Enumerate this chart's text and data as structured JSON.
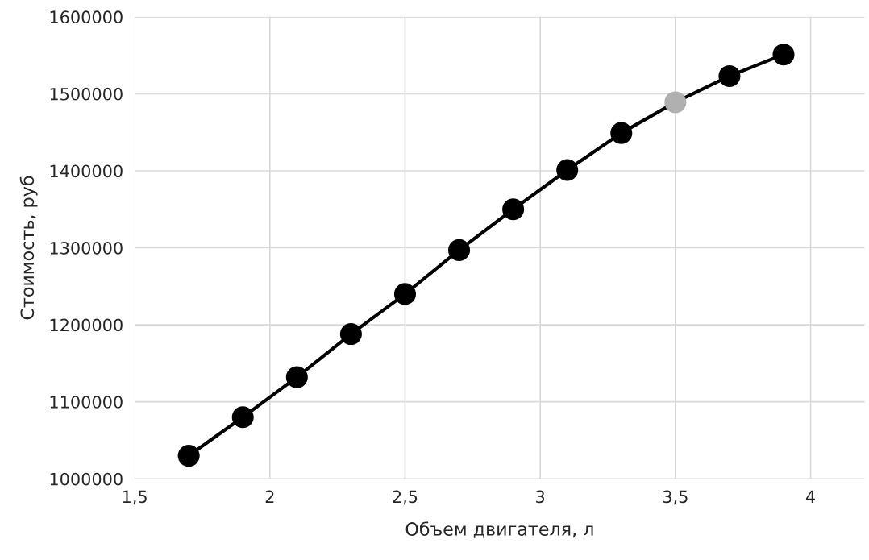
{
  "chart_data": {
    "type": "line",
    "xlabel": "Объем двигателя, л",
    "ylabel": "Стоимость, руб",
    "x": [
      1.7,
      1.9,
      2.1,
      2.3,
      2.5,
      2.7,
      2.9,
      3.1,
      3.3,
      3.5,
      3.7,
      3.9
    ],
    "series": [
      {
        "color": "#000000",
        "colors": [
          "#000000",
          "#000000",
          "#000000",
          "#000000",
          "#000000",
          "#000000",
          "#000000",
          "#000000",
          "#000000",
          "#b0b0b0",
          "#000000",
          "#000000"
        ],
        "values": [
          1030000,
          1080000,
          1132000,
          1188000,
          1240000,
          1297000,
          1350000,
          1401000,
          1449000,
          1489000,
          1523000,
          1551000
        ]
      }
    ],
    "xlim": [
      1.5,
      4.2
    ],
    "xticks": [
      {
        "value": 1.5,
        "label": "1,5"
      },
      2,
      {
        "value": 2.5,
        "label": "2,5"
      },
      3,
      {
        "value": 3.5,
        "label": "3,5"
      },
      4
    ],
    "ylim": [
      1000000,
      1600000
    ],
    "yticks": [
      1000000,
      1100000,
      1200000,
      1300000,
      1400000,
      1500000,
      1600000
    ],
    "grid": true,
    "marker": "circle",
    "line_style": "solid"
  }
}
